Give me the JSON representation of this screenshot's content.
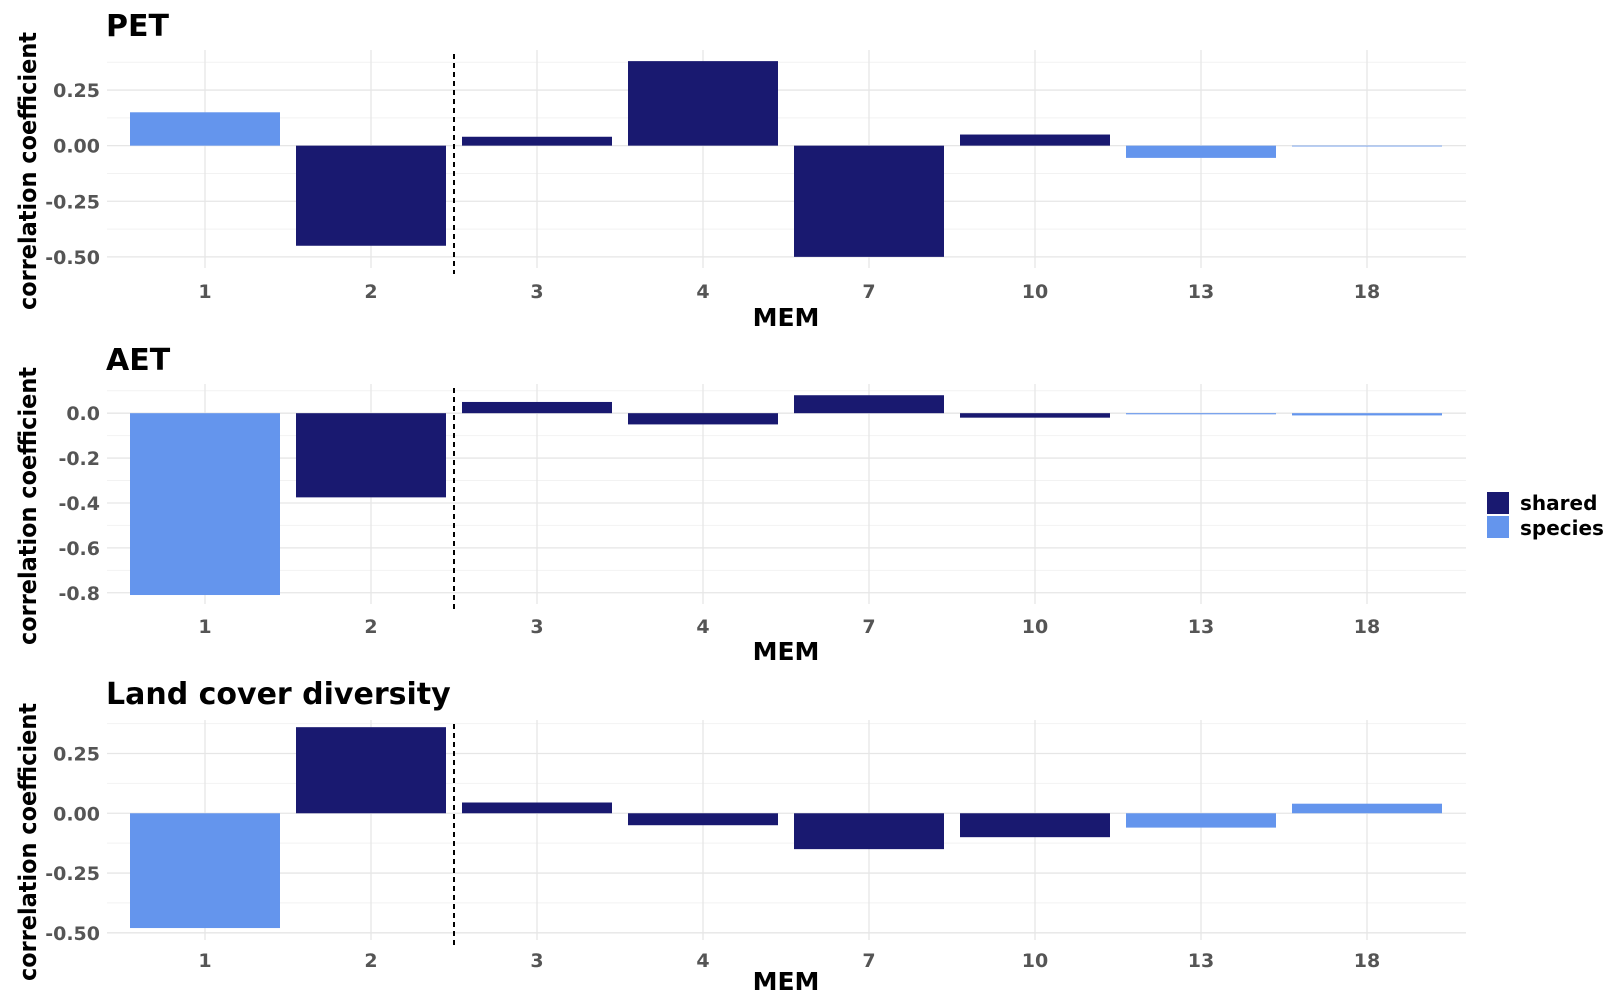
{
  "colors": {
    "shared": "#191970",
    "species": "#6495ED"
  },
  "legend": {
    "placement": "right",
    "items": [
      {
        "key": "shared",
        "label": "shared"
      },
      {
        "key": "species",
        "label": "species"
      }
    ]
  },
  "chart_data": [
    {
      "type": "bar",
      "title": "PET",
      "xlabel": "MEM",
      "ylabel": "correlation coefficient",
      "categories": [
        "1",
        "2",
        "3",
        "4",
        "7",
        "10",
        "13",
        "18"
      ],
      "values": [
        0.15,
        -0.45,
        0.04,
        0.38,
        -0.5,
        0.05,
        -0.055,
        0.0
      ],
      "groups": [
        "species",
        "shared",
        "shared",
        "shared",
        "shared",
        "shared",
        "species",
        "species"
      ],
      "ylim": [
        -0.55,
        0.43
      ],
      "yticks": [
        -0.5,
        -0.25,
        0.0,
        0.25
      ],
      "ytick_labels": [
        "-0.50",
        "-0.25",
        "0.00",
        "0.25"
      ],
      "vline_between": [
        2,
        3
      ],
      "grid": true
    },
    {
      "type": "bar",
      "title": "AET",
      "xlabel": "MEM",
      "ylabel": "correlation coefficient",
      "categories": [
        "1",
        "2",
        "3",
        "4",
        "7",
        "10",
        "13",
        "18"
      ],
      "values": [
        -0.81,
        -0.375,
        0.05,
        -0.05,
        0.08,
        -0.02,
        -0.005,
        -0.01
      ],
      "groups": [
        "species",
        "shared",
        "shared",
        "shared",
        "shared",
        "shared",
        "species",
        "species"
      ],
      "ylim": [
        -0.85,
        0.13
      ],
      "yticks": [
        -0.8,
        -0.6,
        -0.4,
        -0.2,
        0.0
      ],
      "ytick_labels": [
        "-0.8",
        "-0.6",
        "-0.4",
        "-0.2",
        "0.0"
      ],
      "vline_between": [
        2,
        3
      ],
      "grid": true
    },
    {
      "type": "bar",
      "title": "Land cover diversity",
      "xlabel": "MEM",
      "ylabel": "correlation coefficient",
      "categories": [
        "1",
        "2",
        "3",
        "4",
        "7",
        "10",
        "13",
        "18"
      ],
      "values": [
        -0.48,
        0.36,
        0.045,
        -0.05,
        -0.15,
        -0.1,
        -0.06,
        0.04
      ],
      "groups": [
        "species",
        "shared",
        "shared",
        "shared",
        "shared",
        "shared",
        "species",
        "species"
      ],
      "ylim": [
        -0.53,
        0.39
      ],
      "yticks": [
        -0.5,
        -0.25,
        0.0,
        0.25
      ],
      "ytick_labels": [
        "-0.50",
        "-0.25",
        "0.00",
        "0.25"
      ],
      "vline_between": [
        2,
        3
      ],
      "grid": true
    }
  ]
}
